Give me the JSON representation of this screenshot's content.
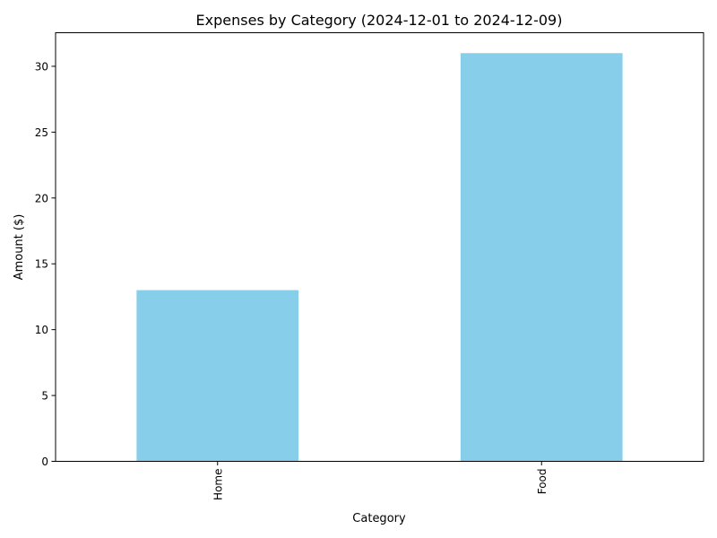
{
  "chart_data": {
    "type": "bar",
    "title": "Expenses by Category (2024-12-01 to 2024-12-09)",
    "xlabel": "Category",
    "ylabel": "Amount ($)",
    "categories": [
      "Home",
      "Food"
    ],
    "values": [
      13,
      31
    ],
    "ylim": [
      0,
      32.55
    ],
    "yticks": [
      0,
      5,
      10,
      15,
      20,
      25,
      30
    ],
    "bar_color": "#87CEEB",
    "grid": false,
    "x_tick_rotation": "vertical"
  }
}
